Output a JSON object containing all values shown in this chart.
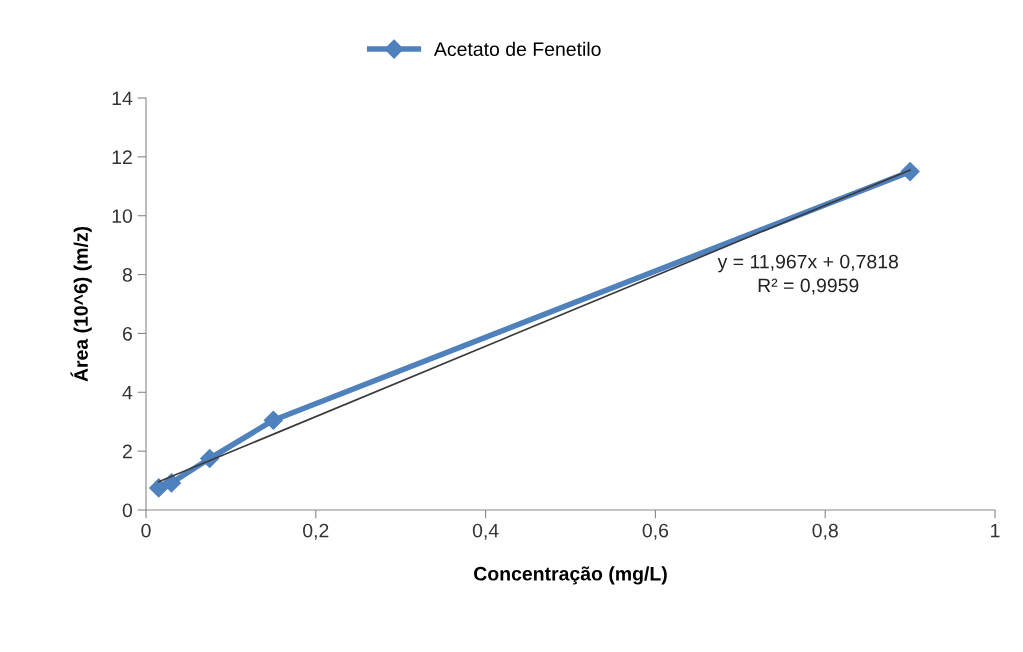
{
  "chart_data": {
    "type": "line",
    "xlabel": "Concentração (mg/L)",
    "ylabel": "Área (10^6) (m/z)",
    "xlim": [
      0,
      1
    ],
    "xticks": [
      0,
      {
        "value": 0.2,
        "label": "0,2"
      },
      {
        "value": 0.4,
        "label": "0,4"
      },
      {
        "value": 0.6,
        "label": "0,6"
      },
      {
        "value": 0.8,
        "label": "0,8"
      },
      1
    ],
    "ylim": [
      0,
      14
    ],
    "yticks": [
      0,
      2,
      4,
      6,
      8,
      10,
      12,
      14
    ],
    "grid": false,
    "legend": "top",
    "series": [
      {
        "name": "Acetato de Fenetilo",
        "color": "#4f81bd",
        "marker": "diamond",
        "x": [
          0.015,
          0.03,
          0.075,
          0.15,
          0.9
        ],
        "values": [
          0.75,
          0.92,
          1.75,
          3.05,
          11.5
        ]
      },
      {
        "type": "line",
        "color": "#3a3a3a",
        "marker": "none",
        "x": [
          0.015,
          0.9
        ],
        "values": [
          0.96,
          11.55
        ]
      }
    ],
    "annotations": [
      "y = 11,967x + 0,7818\nR² = 0,9959"
    ]
  }
}
